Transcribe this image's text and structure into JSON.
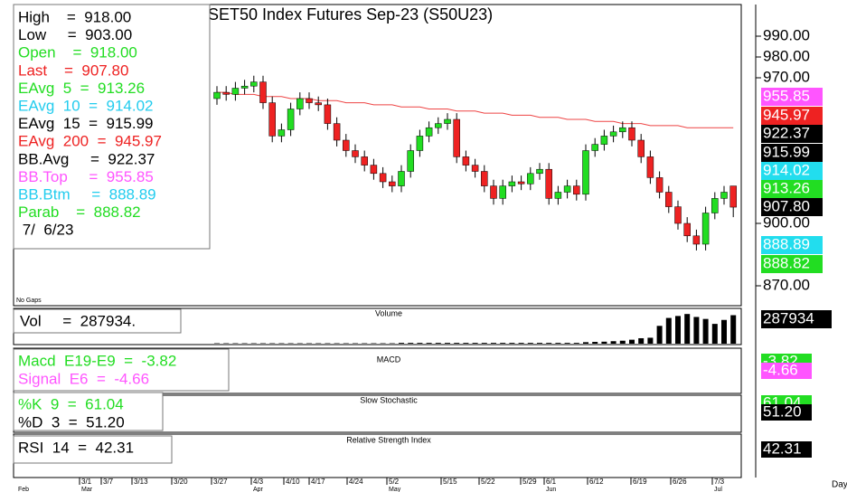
{
  "chart_data": {
    "type": "candlestick",
    "title": "SET50  Index  Futures  Sep-23  (S50U23)",
    "info": [
      {
        "text": "High    =  918.00",
        "color": "#000000"
      },
      {
        "text": "Low     =  903.00",
        "color": "#000000"
      },
      {
        "text": "Open    =  918.00",
        "color": "#22dd22"
      },
      {
        "text": "Last    =  907.80",
        "color": "#ee2222"
      },
      {
        "text": "EAvg  5  =  913.26",
        "color": "#22dd22"
      },
      {
        "text": "EAvg  10  =  914.02",
        "color": "#22ccee"
      },
      {
        "text": "EAvg  15  =  915.99",
        "color": "#000000"
      },
      {
        "text": "EAvg  200  =  945.97",
        "color": "#ee2222"
      },
      {
        "text": "BB.Avg     =  922.37",
        "color": "#000000"
      },
      {
        "text": "BB.Top     =  955.85",
        "color": "#ff55ff"
      },
      {
        "text": "BB.Btm     =  888.89",
        "color": "#22ccee"
      },
      {
        "text": "Parab    =  888.82",
        "color": "#22dd22"
      },
      {
        "text": " 7/  6/23",
        "color": "#000000"
      }
    ],
    "note": "No Gaps",
    "ylim": [
      870,
      990
    ],
    "yticks": [
      {
        "value": 990,
        "label": "990.00"
      },
      {
        "value": 980,
        "label": "980.00"
      },
      {
        "value": 970,
        "label": "970.00"
      },
      {
        "value": 900,
        "label": "900.00"
      },
      {
        "value": 870,
        "label": "870.00"
      }
    ],
    "open": [
      960,
      963,
      962,
      965,
      966,
      968,
      958,
      942,
      945,
      955,
      960,
      958,
      957,
      948,
      940,
      935,
      932,
      928,
      924,
      920,
      918,
      925,
      935,
      942,
      946,
      948,
      950,
      932,
      928,
      925,
      918,
      912,
      918,
      920,
      919,
      924,
      926,
      912,
      915,
      918,
      914,
      935,
      938,
      942,
      944,
      946,
      940,
      932,
      922,
      915,
      908,
      900,
      894,
      890,
      905,
      912,
      918
    ],
    "high": [
      966,
      966,
      968,
      969,
      971,
      971,
      961,
      948,
      958,
      963,
      963,
      961,
      960,
      951,
      943,
      938,
      935,
      931,
      927,
      923,
      928,
      938,
      945,
      949,
      951,
      953,
      953,
      935,
      931,
      928,
      921,
      921,
      923,
      923,
      927,
      929,
      929,
      918,
      921,
      921,
      938,
      941,
      945,
      947,
      949,
      949,
      943,
      935,
      925,
      918,
      911,
      903,
      897,
      908,
      915,
      918,
      918
    ],
    "low": [
      957,
      959,
      959,
      962,
      963,
      955,
      939,
      939,
      942,
      952,
      955,
      954,
      945,
      937,
      932,
      929,
      925,
      921,
      917,
      915,
      915,
      922,
      932,
      939,
      943,
      945,
      929,
      925,
      922,
      915,
      909,
      909,
      915,
      916,
      916,
      921,
      909,
      909,
      912,
      911,
      911,
      932,
      935,
      939,
      941,
      937,
      929,
      919,
      912,
      905,
      897,
      891,
      887,
      887,
      902,
      909,
      903
    ],
    "close": [
      963,
      962,
      965,
      966,
      968,
      958,
      942,
      945,
      955,
      960,
      958,
      957,
      948,
      940,
      935,
      932,
      928,
      924,
      920,
      918,
      925,
      935,
      942,
      946,
      948,
      950,
      932,
      928,
      925,
      918,
      912,
      918,
      920,
      919,
      924,
      926,
      912,
      915,
      918,
      914,
      935,
      938,
      942,
      944,
      946,
      940,
      932,
      922,
      915,
      908,
      900,
      894,
      890,
      905,
      912,
      915,
      907.8
    ],
    "up_color": "#22dd22",
    "down_color": "#ee2222",
    "series": [
      {
        "name": "EAvg 200",
        "color": "#ee4444",
        "values": [
          963,
          963,
          962,
          962,
          962,
          961,
          961,
          961,
          960,
          960,
          960,
          959,
          959,
          959,
          958,
          958,
          958,
          957,
          957,
          957,
          956,
          956,
          956,
          955,
          955,
          955,
          954,
          954,
          954,
          953,
          953,
          953,
          952,
          952,
          952,
          951,
          951,
          951,
          950,
          950,
          950,
          949,
          949,
          949,
          948,
          948,
          948,
          947,
          947,
          947,
          947,
          946,
          946,
          946,
          946,
          946,
          946
        ]
      }
    ],
    "price_labels": [
      {
        "value": 955.85,
        "label": "955.85",
        "color": "#ff55ff"
      },
      {
        "value": 945.97,
        "label": "945.97",
        "color": "#ee2222"
      },
      {
        "value": 922.37,
        "label": "922.37",
        "color": "#000000"
      },
      {
        "value": 915.99,
        "label": "915.99",
        "color": "#000000"
      },
      {
        "value": 914.02,
        "label": "914.02",
        "color": "#22ddee"
      },
      {
        "value": 913.26,
        "label": "913.26",
        "color": "#22dd22"
      },
      {
        "value": 907.8,
        "label": "907.80",
        "color": "#000000"
      },
      {
        "value": 888.89,
        "label": "888.89",
        "color": "#22ddee"
      },
      {
        "value": 888.82,
        "label": "888.82",
        "color": "#22dd22"
      }
    ],
    "volume": {
      "title": "Volume",
      "readout": "Vol     =  287934.",
      "last_label": "287934",
      "values": [
        4000,
        4000,
        4000,
        4000,
        4000,
        4000,
        4000,
        4000,
        4000,
        4000,
        4000,
        4000,
        4000,
        4000,
        4000,
        4000,
        4000,
        4000,
        4000,
        4000,
        8000,
        8000,
        8000,
        8000,
        8000,
        8000,
        8000,
        8000,
        8000,
        8000,
        8000,
        8000,
        8000,
        8000,
        8000,
        8000,
        8000,
        8000,
        8000,
        8000,
        15000,
        18000,
        20000,
        25000,
        30000,
        40000,
        55000,
        60000,
        180000,
        260000,
        280000,
        300000,
        270000,
        250000,
        200000,
        240000,
        287934
      ],
      "ylim": [
        0,
        320000
      ]
    },
    "panels": [
      {
        "title": "MACD",
        "readouts": [
          {
            "text": "Macd  E19-E9  =  -3.82",
            "color": "#22dd22"
          },
          {
            "text": "Signal  E6  =  -4.66",
            "color": "#ff55ff"
          }
        ],
        "labels": [
          {
            "text": "-3.82",
            "color": "#22dd22"
          },
          {
            "text": "-4.66",
            "color": "#ff55ff"
          }
        ]
      },
      {
        "title": "Slow Stochastic",
        "readouts": [
          {
            "text": "%K  9  =  61.04",
            "color": "#22dd22"
          },
          {
            "text": "%D  3  =  51.20",
            "color": "#000000"
          }
        ],
        "labels": [
          {
            "text": "61.04",
            "color": "#22dd22"
          },
          {
            "text": "51.20",
            "color": "#000000"
          }
        ]
      },
      {
        "title": "Relative Strength  Index",
        "readouts": [
          {
            "text": "RSI  14  =  42.31",
            "color": "#000000"
          }
        ],
        "labels": [
          {
            "text": "42.31",
            "color": "#000000"
          }
        ]
      }
    ],
    "x_labels": [
      "3/1",
      "3/7",
      "3/13",
      "3/20",
      "3/27",
      "4/3",
      "4/10",
      "4/17",
      "4/24",
      "5/2",
      "5/15",
      "5/22",
      "5/29",
      "6/1",
      "6/12",
      "6/19",
      "6/26",
      "7/3"
    ],
    "month_labels": [
      "Feb",
      "Mar",
      "Apr",
      "May",
      "Jun",
      "Jul"
    ],
    "period": "Day"
  }
}
